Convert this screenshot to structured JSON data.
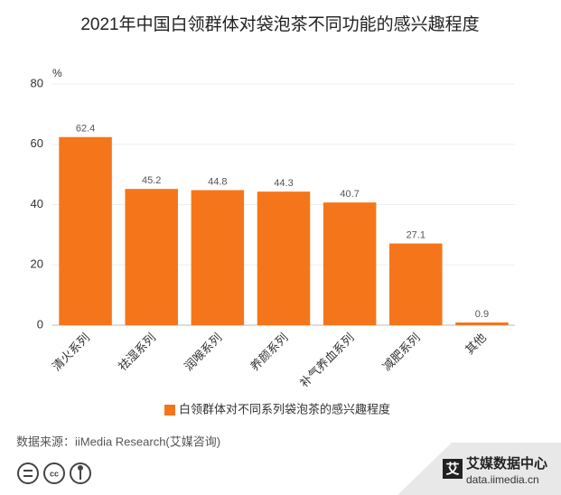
{
  "chart_data": {
    "type": "bar",
    "title": "2021年中国白领群体对袋泡茶不同功能的感兴趣程度",
    "y_label": "%",
    "categories": [
      "清火系列",
      "祛湿系列",
      "润喉系列",
      "养颜系列",
      "补气养血系列",
      "减肥系列",
      "其他"
    ],
    "series": [
      {
        "name": "白领群体对不同系列袋泡茶的感兴趣程度",
        "color": "#f5761a",
        "values": [
          62.4,
          45.2,
          44.8,
          44.3,
          40.7,
          27.1,
          0.9
        ]
      }
    ],
    "ylim": [
      0,
      80
    ],
    "yticks": [
      0,
      20,
      40,
      60,
      80
    ],
    "grid": true,
    "source": "数据来源：iiMedia Research(艾媒咨询)"
  },
  "logo": {
    "icon": "艾",
    "title": "艾媒数据中心",
    "url": "data.iimedia.cn"
  }
}
